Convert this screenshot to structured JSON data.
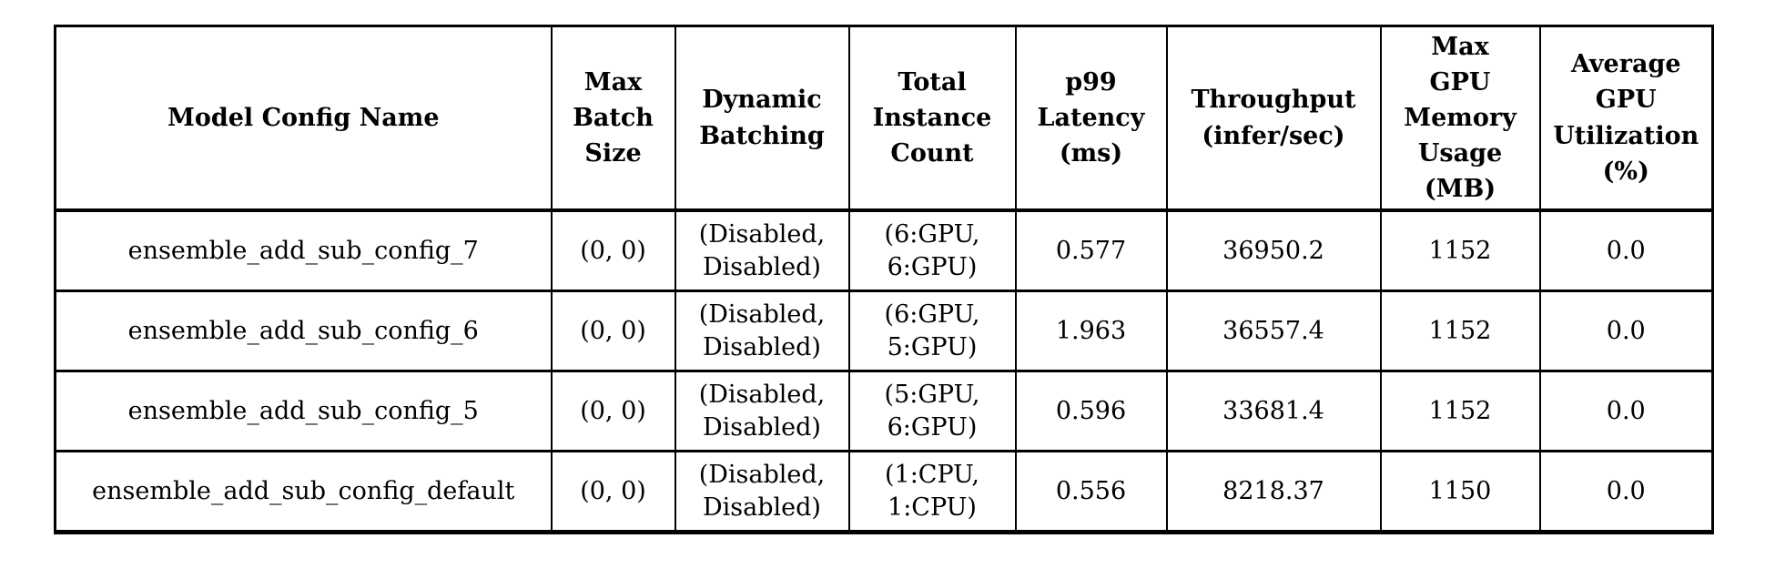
{
  "page": {
    "background_color": "#ffffff",
    "text_color": "#000000",
    "border_color": "#000000"
  },
  "table": {
    "headers": [
      "Model Config Name",
      "Max\nBatch\nSize",
      "Dynamic\nBatching",
      "Total\nInstance\nCount",
      "p99\nLatency\n(ms)",
      "Throughput\n(infer/sec)",
      "Max\nGPU\nMemory\nUsage\n(MB)",
      "Average\nGPU\nUtilization\n(%)"
    ],
    "rows": [
      [
        "ensemble_add_sub_config_7",
        "(0, 0)",
        "(Disabled,\nDisabled)",
        "(6:GPU,\n6:GPU)",
        "0.577",
        "36950.2",
        "1152",
        "0.0"
      ],
      [
        "ensemble_add_sub_config_6",
        "(0, 0)",
        "(Disabled,\nDisabled)",
        "(6:GPU,\n5:GPU)",
        "1.963",
        "36557.4",
        "1152",
        "0.0"
      ],
      [
        "ensemble_add_sub_config_5",
        "(0, 0)",
        "(Disabled,\nDisabled)",
        "(5:GPU,\n6:GPU)",
        "0.596",
        "33681.4",
        "1152",
        "0.0"
      ],
      [
        "ensemble_add_sub_config_default",
        "(0, 0)",
        "(Disabled,\nDisabled)",
        "(1:CPU,\n1:CPU)",
        "0.556",
        "8218.37",
        "1150",
        "0.0"
      ]
    ]
  }
}
